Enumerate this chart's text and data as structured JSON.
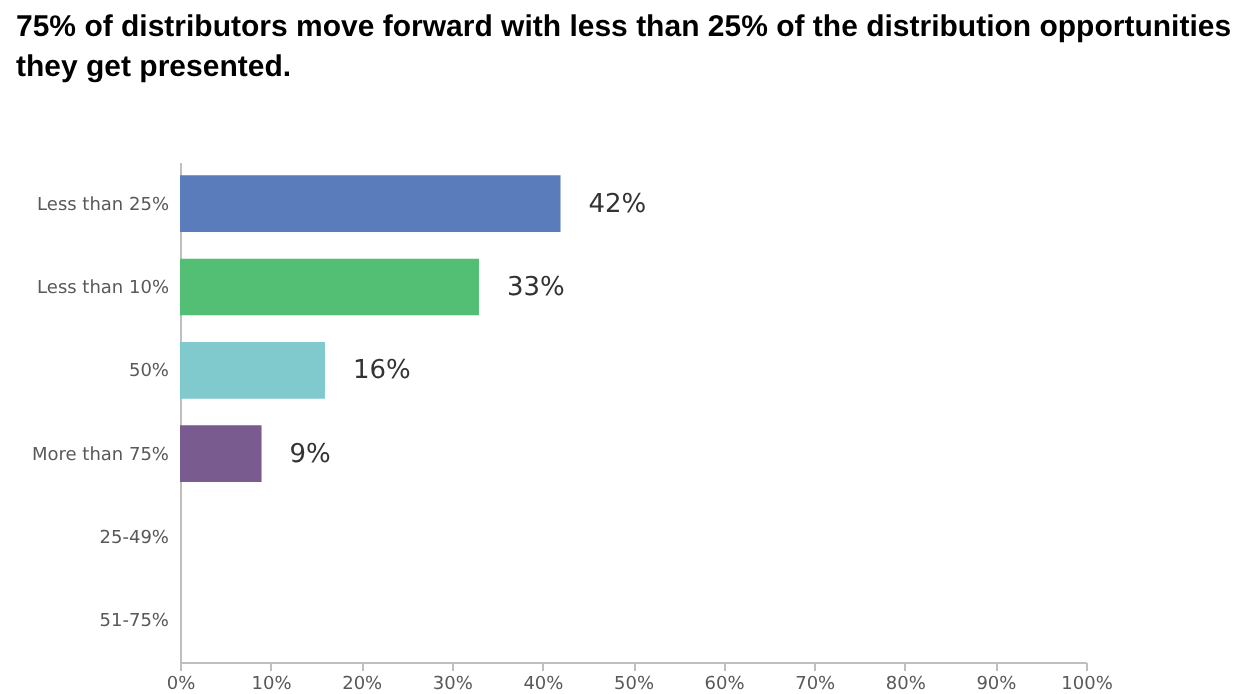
{
  "chart_data": {
    "type": "bar",
    "orientation": "horizontal",
    "title": "75% of distributors move forward with less than 25% of the distribution opportunities they get presented.",
    "categories": [
      "Less than 25%",
      "Less than 10%",
      "50%",
      "More than 75%",
      "25-49%",
      "51-75%"
    ],
    "values": [
      42,
      33,
      16,
      9,
      0,
      0
    ],
    "colors": [
      "#5b7cba",
      "#52bf74",
      "#80c9cd",
      "#7a5b8f",
      "#7f7f7f",
      "#7f7f7f"
    ],
    "value_labels": [
      "42%",
      "33%",
      "16%",
      "9%",
      null,
      null
    ],
    "xlim": [
      0,
      100
    ],
    "xticks": [
      {
        "value": 0,
        "label": "0%"
      },
      {
        "value": 10,
        "label": "10%"
      },
      {
        "value": 20,
        "label": "20%"
      },
      {
        "value": 30,
        "label": "30%"
      },
      {
        "value": 40,
        "label": "40%"
      },
      {
        "value": 50,
        "label": "50%"
      },
      {
        "value": 60,
        "label": "60%"
      },
      {
        "value": 70,
        "label": "70%"
      },
      {
        "value": 80,
        "label": "80%"
      },
      {
        "value": 90,
        "label": "90%"
      },
      {
        "value": 100,
        "label": "100%"
      }
    ],
    "grid": false,
    "legend": false
  }
}
